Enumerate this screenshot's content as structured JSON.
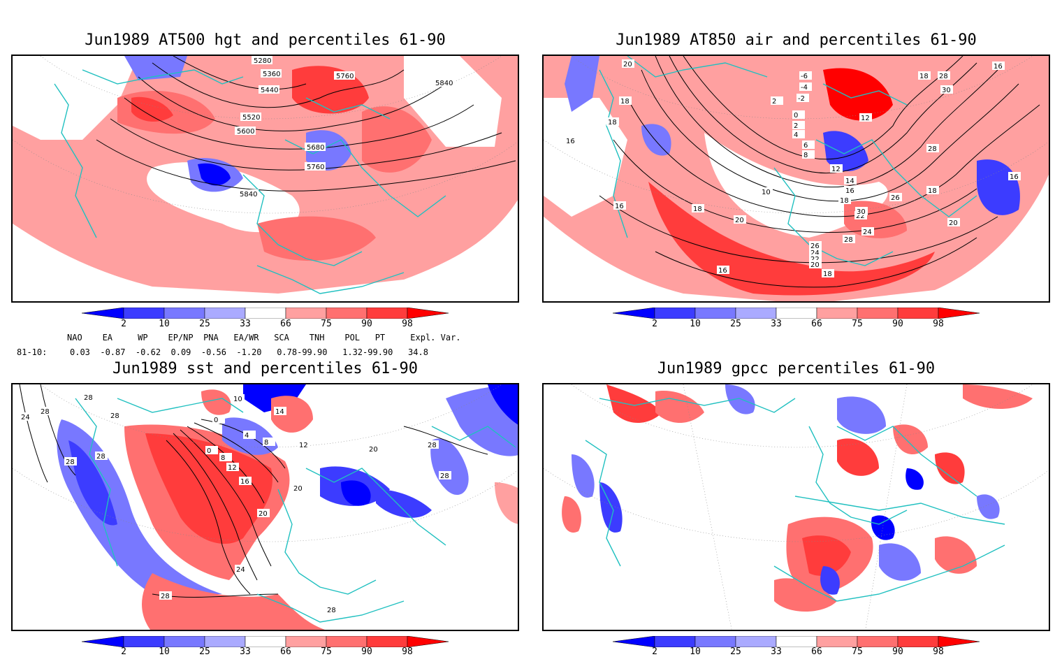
{
  "panels": [
    {
      "id": "hgt",
      "title": "Jun1989 AT500 hgt and percentiles 61-90",
      "contour_labels": [
        "5280",
        "5360",
        "5440",
        "5520",
        "5600",
        "5680",
        "5760",
        "5840",
        "5760",
        "5840"
      ]
    },
    {
      "id": "air",
      "title": "Jun1989 AT850 air and percentiles 61-90",
      "contour_labels": [
        "20",
        "18",
        "18",
        "16",
        "16",
        "-6",
        "-4",
        "-2",
        "2",
        "0",
        "2",
        "4",
        "6",
        "8",
        "10",
        "12",
        "14",
        "16",
        "18",
        "22",
        "24",
        "26",
        "28",
        "30",
        "28",
        "18",
        "12",
        "18",
        "20",
        "16",
        "18",
        "20",
        "26",
        "24",
        "22",
        "20",
        "28",
        "30",
        "16",
        "20",
        "16",
        "18"
      ]
    },
    {
      "id": "sst",
      "title": "Jun1989 sst and percentiles 61-90",
      "contour_labels": [
        "28",
        "28",
        "28",
        "24",
        "28",
        "28",
        "10",
        "0",
        "14",
        "4",
        "0",
        "8",
        "8",
        "12",
        "12",
        "16",
        "20",
        "20",
        "24",
        "28",
        "28",
        "20",
        "28",
        "28"
      ]
    },
    {
      "id": "gpcc",
      "title": "Jun1989 gpcc percentiles 61-90",
      "contour_labels": []
    }
  ],
  "colorbar": {
    "ticks": [
      "2",
      "10",
      "25",
      "33",
      "66",
      "75",
      "90",
      "98"
    ],
    "colors": {
      "blue_dark": "#0000ff",
      "blue_mid": "#3c3cff",
      "blue_light": "#7878ff",
      "blue_pale": "#aaaaff",
      "red_pale": "#ffa0a0",
      "red_light": "#ff7070",
      "red_mid": "#ff3c3c",
      "red_dark": "#ff0000",
      "coast": "#20c0c0"
    }
  },
  "teleconnections": {
    "header": "NAO    EA     WP    EP/NP  PNA   EA/WR   SCA    TNH    POL   PT     Expl. Var.",
    "row_label": "81-10:",
    "values": "0.03  -0.87  -0.62  0.09  -0.56  -1.20   0.78-99.90   1.32-99.90   34.8"
  }
}
